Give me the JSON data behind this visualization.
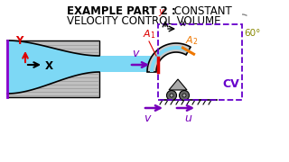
{
  "bg_color": "#ffffff",
  "title_line1_bold": "EXAMPLE PART 2 : ",
  "title_line1_normal": "CONSTANT",
  "title_line2": "VELOCITY CONTROL VOLUME",
  "fluid_color": "#7dd8f5",
  "nozzle_gray": "#b8b8b8",
  "vane_gray": "#c8c8c8",
  "arrow_color": "#7700bb",
  "A1_color": "#dd0000",
  "A2_color": "#ee7700",
  "angle_color": "#888800",
  "cv_color": "#6600cc",
  "axis_red": "#dd0000",
  "ground_color": "#444444",
  "wheel_color": "#666666"
}
